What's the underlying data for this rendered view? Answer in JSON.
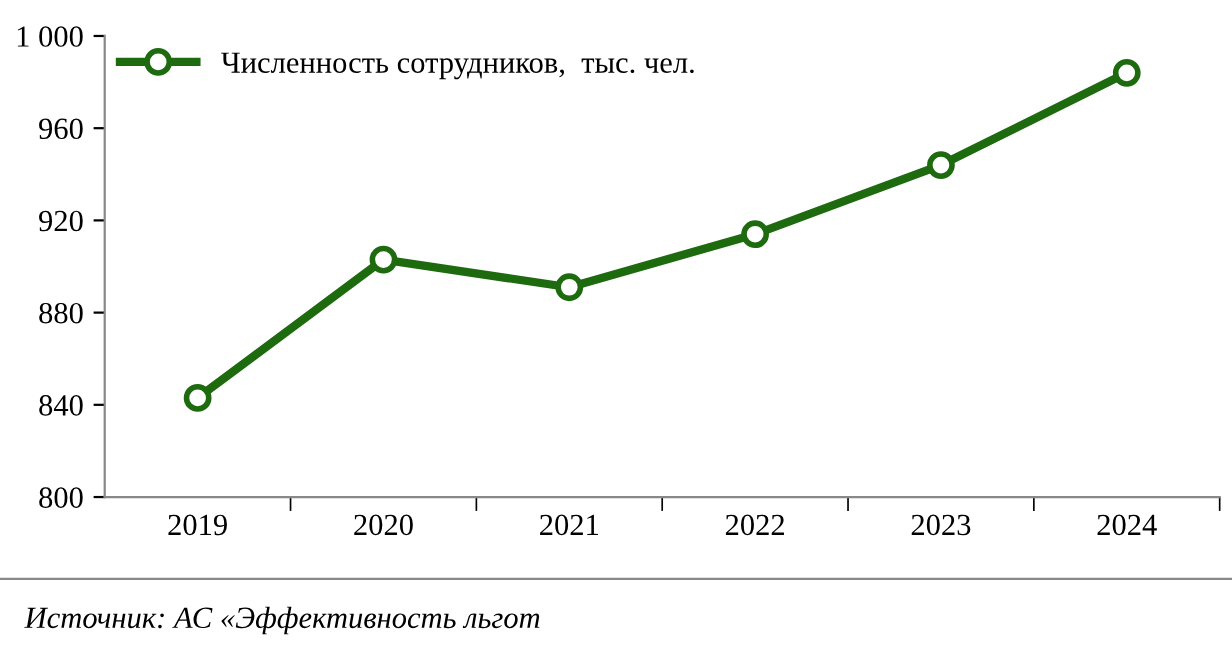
{
  "chart_data": {
    "type": "line",
    "categories": [
      "2019",
      "2020",
      "2021",
      "2022",
      "2023",
      "2024"
    ],
    "series": [
      {
        "name": "Численность сотрудников,  тыс. чел.",
        "color": "#1e6b0f",
        "values": [
          843,
          903,
          891,
          914,
          944,
          984
        ]
      }
    ],
    "ylim": [
      800,
      1000
    ],
    "yticks": [
      800,
      840,
      880,
      920,
      960,
      {
        "value": 1000,
        "label": "1 000"
      }
    ],
    "marker": "circle",
    "line_style": "solid",
    "legend": "top left",
    "grid": false,
    "annotations": [
      "Источник: АС «Эффективность льгот"
    ]
  }
}
